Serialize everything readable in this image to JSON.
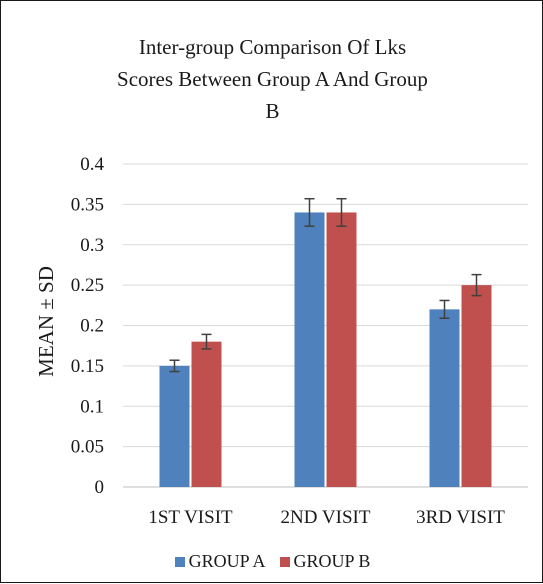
{
  "chart_data": {
    "type": "bar",
    "title_lines": [
      "Inter-group Comparison Of Lks",
      "Scores Between Group A And Group",
      "B"
    ],
    "xlabel": "",
    "ylabel": "MEAN ± SD",
    "categories": [
      "1ST VISIT",
      "2ND VISIT",
      "3RD VISIT"
    ],
    "series": [
      {
        "name": "GROUP A",
        "color": "#4f81bd",
        "values": [
          0.15,
          0.34,
          0.22
        ],
        "errors": [
          0.007,
          0.017,
          0.011
        ]
      },
      {
        "name": "GROUP B",
        "color": "#c0504d",
        "values": [
          0.18,
          0.34,
          0.25
        ],
        "errors": [
          0.009,
          0.017,
          0.013
        ]
      }
    ],
    "ylim": [
      0,
      0.4
    ],
    "yticks": [
      "0",
      "0.05",
      "0.1",
      "0.15",
      "0.2",
      "0.25",
      "0.3",
      "0.35",
      "0.4"
    ],
    "grid": true,
    "legend_position": "bottom"
  }
}
